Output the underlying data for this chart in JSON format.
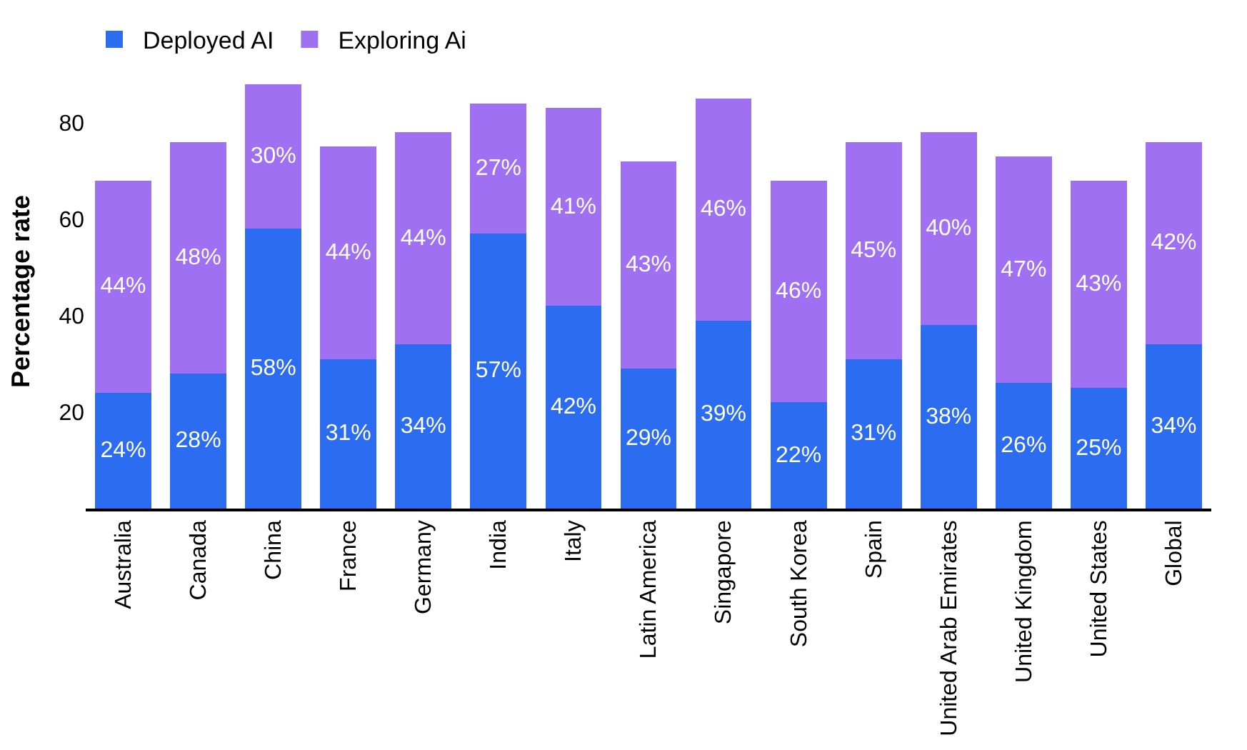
{
  "chart_data": {
    "type": "bar",
    "stacked": true,
    "ylabel": "Percentage rate",
    "legend": "top left",
    "categories": [
      "Australia",
      "Canada",
      "China",
      "France",
      "Germany",
      "India",
      "Italy",
      "Latin America",
      "Singapore",
      "South Korea",
      "Spain",
      "United Arab Emirates",
      "United Kingdom",
      "United States",
      "Global"
    ],
    "ylim": [
      0,
      90
    ],
    "yticks": [
      20,
      40,
      60,
      80
    ],
    "series": [
      {
        "name": "Deployed AI",
        "color": "#2b6cf0",
        "values": [
          24,
          28,
          58,
          31,
          34,
          57,
          42,
          29,
          39,
          22,
          31,
          38,
          26,
          25,
          34
        ],
        "value_labels": [
          "24%",
          "28%",
          "58%",
          "31%",
          "34%",
          "57%",
          "42%",
          "29%",
          "39%",
          "22%",
          "31%",
          "38%",
          "26%",
          "25%",
          "34%"
        ]
      },
      {
        "name": "Exploring Ai",
        "color": "#a070f2",
        "values": [
          44,
          48,
          30,
          44,
          44,
          27,
          41,
          43,
          46,
          46,
          45,
          40,
          47,
          43,
          42
        ],
        "value_labels": [
          "44%",
          "48%",
          "30%",
          "44%",
          "44%",
          "27%",
          "41%",
          "43%",
          "46%",
          "46%",
          "45%",
          "40%",
          "47%",
          "43%",
          "42%"
        ]
      }
    ]
  }
}
